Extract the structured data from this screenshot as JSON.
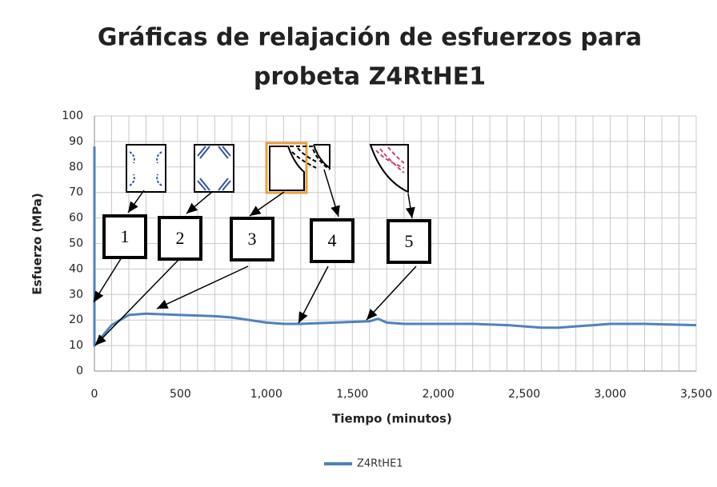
{
  "chart_data": {
    "type": "line",
    "title": "Gráficas de relajación de esfuerzos para",
    "subtitle": "probeta Z4RtHE1",
    "x_label": "Tiempo (minutos)",
    "y_label": "Esfuerzo (MPa)",
    "x": [
      0,
      0,
      50,
      100,
      150,
      200,
      300,
      500,
      700,
      800,
      900,
      1000,
      1100,
      1200,
      1400,
      1600,
      1650,
      1700,
      1800,
      2000,
      2200,
      2400,
      2600,
      2700,
      2800,
      2900,
      3000,
      3200,
      3500
    ],
    "series": [
      {
        "name": "Z4RtHE1",
        "color": "#4f81bd",
        "values": [
          88,
          10,
          14,
          18,
          20,
          22,
          22.5,
          22,
          21.5,
          21,
          20,
          19,
          18.5,
          18.5,
          19,
          19.5,
          20.5,
          19,
          18.5,
          18.5,
          18.5,
          18,
          17,
          17,
          17.5,
          18,
          18.5,
          18.5,
          18
        ]
      }
    ],
    "xlim": [
      0,
      3500
    ],
    "xticks": [
      0,
      500,
      {
        "value": 1000,
        "label": "1,000"
      },
      {
        "value": 1500,
        "label": "1,500"
      },
      {
        "value": 2000,
        "label": "2,000"
      },
      {
        "value": 2500,
        "label": "2,500"
      },
      {
        "value": 3000,
        "label": "3,000"
      },
      {
        "value": 3500,
        "label": "3,500"
      }
    ],
    "ylim": [
      0,
      100
    ],
    "yticks": [
      0,
      10,
      20,
      30,
      40,
      50,
      60,
      70,
      80,
      90,
      100
    ],
    "grid": true,
    "legend": "bottom",
    "annotations": [
      "1",
      "2",
      "3",
      "4",
      "5"
    ]
  }
}
